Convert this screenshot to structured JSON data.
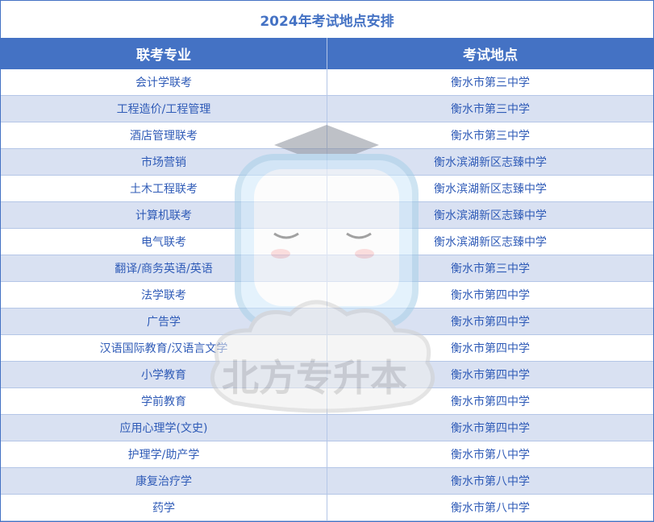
{
  "title": "2024年考试地点安排",
  "columns": [
    "联考专业",
    "考试地点"
  ],
  "rows": [
    {
      "major": "会计学联考",
      "location": "衡水市第三中学"
    },
    {
      "major": "工程造价/工程管理",
      "location": "衡水市第三中学"
    },
    {
      "major": "酒店管理联考",
      "location": "衡水市第三中学"
    },
    {
      "major": "市场营销",
      "location": "衡水滨湖新区志臻中学"
    },
    {
      "major": "土木工程联考",
      "location": "衡水滨湖新区志臻中学"
    },
    {
      "major": "计算机联考",
      "location": "衡水滨湖新区志臻中学"
    },
    {
      "major": "电气联考",
      "location": "衡水滨湖新区志臻中学"
    },
    {
      "major": "翻译/商务英语/英语",
      "location": "衡水市第三中学"
    },
    {
      "major": "法学联考",
      "location": "衡水市第四中学"
    },
    {
      "major": "广告学",
      "location": "衡水市第四中学"
    },
    {
      "major": "汉语国际教育/汉语言文学",
      "location": "衡水市第四中学"
    },
    {
      "major": "小学教育",
      "location": "衡水市第四中学"
    },
    {
      "major": "学前教育",
      "location": "衡水市第四中学"
    },
    {
      "major": "应用心理学(文史)",
      "location": "衡水市第四中学"
    },
    {
      "major": "护理学/助产学",
      "location": "衡水市第八中学"
    },
    {
      "major": "康复治疗学",
      "location": "衡水市第八中学"
    },
    {
      "major": "药学",
      "location": "衡水市第八中学"
    }
  ],
  "watermark": "北方专升本",
  "colors": {
    "accent": "#4472C4",
    "stripe": "#D9E1F2",
    "text": "#2F5BB7"
  }
}
